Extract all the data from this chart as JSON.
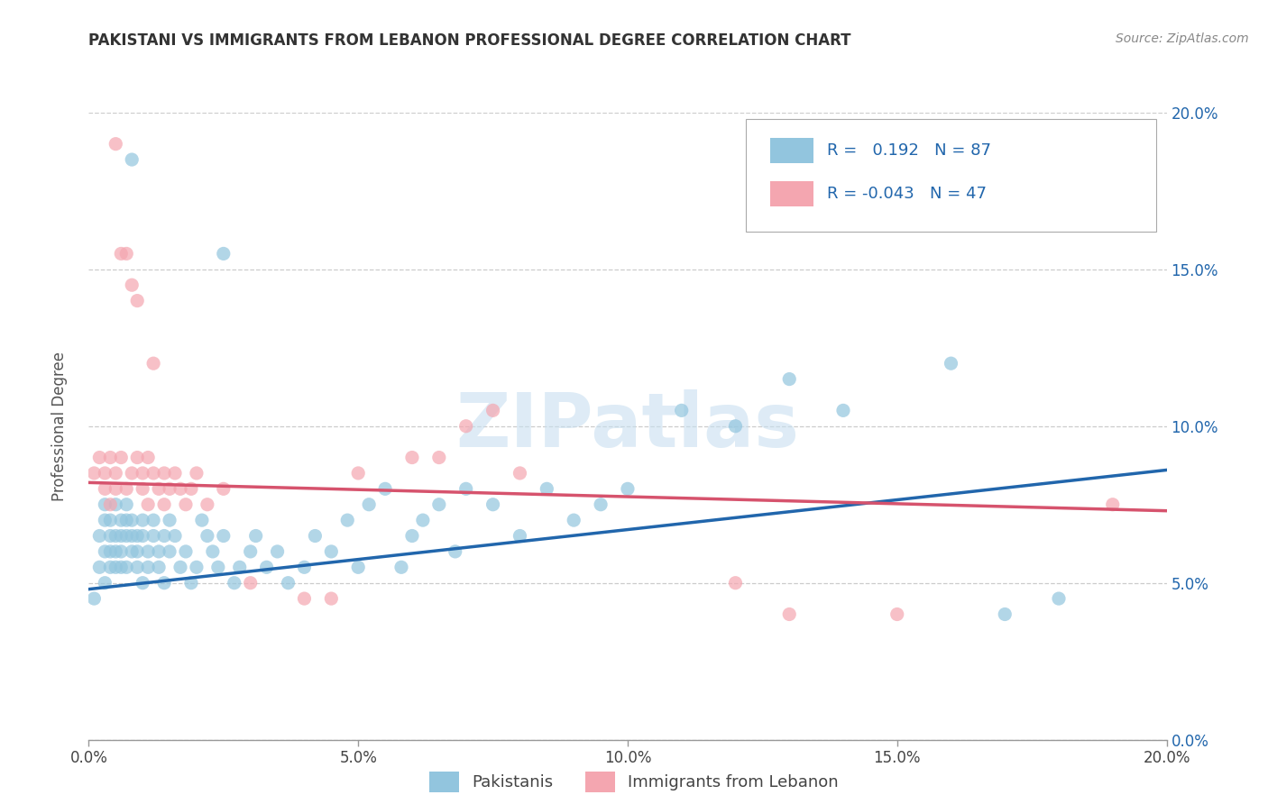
{
  "title": "PAKISTANI VS IMMIGRANTS FROM LEBANON PROFESSIONAL DEGREE CORRELATION CHART",
  "source": "Source: ZipAtlas.com",
  "ylabel": "Professional Degree",
  "xlim": [
    0.0,
    0.2
  ],
  "ylim": [
    0.0,
    0.2
  ],
  "pakistani_R": 0.192,
  "pakistani_N": 87,
  "lebanon_R": -0.043,
  "lebanon_N": 47,
  "pakistani_color": "#92c5de",
  "lebanon_color": "#f4a6b0",
  "pakistani_line_color": "#2166ac",
  "lebanon_line_color": "#d6536d",
  "watermark": "ZIPatlas",
  "pakistani_scatter": [
    [
      0.001,
      0.045
    ],
    [
      0.002,
      0.065
    ],
    [
      0.002,
      0.055
    ],
    [
      0.003,
      0.07
    ],
    [
      0.003,
      0.06
    ],
    [
      0.003,
      0.05
    ],
    [
      0.003,
      0.075
    ],
    [
      0.004,
      0.065
    ],
    [
      0.004,
      0.055
    ],
    [
      0.004,
      0.07
    ],
    [
      0.004,
      0.06
    ],
    [
      0.005,
      0.065
    ],
    [
      0.005,
      0.055
    ],
    [
      0.005,
      0.075
    ],
    [
      0.005,
      0.06
    ],
    [
      0.006,
      0.07
    ],
    [
      0.006,
      0.065
    ],
    [
      0.006,
      0.055
    ],
    [
      0.006,
      0.06
    ],
    [
      0.007,
      0.07
    ],
    [
      0.007,
      0.065
    ],
    [
      0.007,
      0.055
    ],
    [
      0.007,
      0.075
    ],
    [
      0.008,
      0.065
    ],
    [
      0.008,
      0.06
    ],
    [
      0.008,
      0.07
    ],
    [
      0.009,
      0.065
    ],
    [
      0.009,
      0.055
    ],
    [
      0.009,
      0.06
    ],
    [
      0.01,
      0.07
    ],
    [
      0.01,
      0.065
    ],
    [
      0.01,
      0.05
    ],
    [
      0.011,
      0.06
    ],
    [
      0.011,
      0.055
    ],
    [
      0.012,
      0.065
    ],
    [
      0.012,
      0.07
    ],
    [
      0.013,
      0.055
    ],
    [
      0.013,
      0.06
    ],
    [
      0.014,
      0.065
    ],
    [
      0.014,
      0.05
    ],
    [
      0.015,
      0.07
    ],
    [
      0.015,
      0.06
    ],
    [
      0.016,
      0.065
    ],
    [
      0.017,
      0.055
    ],
    [
      0.018,
      0.06
    ],
    [
      0.019,
      0.05
    ],
    [
      0.02,
      0.055
    ],
    [
      0.021,
      0.07
    ],
    [
      0.022,
      0.065
    ],
    [
      0.023,
      0.06
    ],
    [
      0.024,
      0.055
    ],
    [
      0.025,
      0.065
    ],
    [
      0.027,
      0.05
    ],
    [
      0.028,
      0.055
    ],
    [
      0.03,
      0.06
    ],
    [
      0.031,
      0.065
    ],
    [
      0.033,
      0.055
    ],
    [
      0.035,
      0.06
    ],
    [
      0.037,
      0.05
    ],
    [
      0.04,
      0.055
    ],
    [
      0.042,
      0.065
    ],
    [
      0.045,
      0.06
    ],
    [
      0.048,
      0.07
    ],
    [
      0.05,
      0.055
    ],
    [
      0.052,
      0.075
    ],
    [
      0.055,
      0.08
    ],
    [
      0.058,
      0.055
    ],
    [
      0.06,
      0.065
    ],
    [
      0.062,
      0.07
    ],
    [
      0.065,
      0.075
    ],
    [
      0.068,
      0.06
    ],
    [
      0.07,
      0.08
    ],
    [
      0.075,
      0.075
    ],
    [
      0.08,
      0.065
    ],
    [
      0.085,
      0.08
    ],
    [
      0.09,
      0.07
    ],
    [
      0.095,
      0.075
    ],
    [
      0.1,
      0.08
    ],
    [
      0.11,
      0.105
    ],
    [
      0.12,
      0.1
    ],
    [
      0.13,
      0.115
    ],
    [
      0.14,
      0.105
    ],
    [
      0.16,
      0.12
    ],
    [
      0.17,
      0.04
    ],
    [
      0.18,
      0.045
    ],
    [
      0.008,
      0.185
    ],
    [
      0.025,
      0.155
    ]
  ],
  "lebanon_scatter": [
    [
      0.001,
      0.085
    ],
    [
      0.002,
      0.09
    ],
    [
      0.003,
      0.085
    ],
    [
      0.003,
      0.08
    ],
    [
      0.004,
      0.09
    ],
    [
      0.004,
      0.075
    ],
    [
      0.005,
      0.085
    ],
    [
      0.005,
      0.08
    ],
    [
      0.005,
      0.19
    ],
    [
      0.006,
      0.155
    ],
    [
      0.006,
      0.09
    ],
    [
      0.007,
      0.155
    ],
    [
      0.007,
      0.08
    ],
    [
      0.008,
      0.145
    ],
    [
      0.008,
      0.085
    ],
    [
      0.009,
      0.14
    ],
    [
      0.009,
      0.09
    ],
    [
      0.01,
      0.08
    ],
    [
      0.01,
      0.085
    ],
    [
      0.011,
      0.075
    ],
    [
      0.011,
      0.09
    ],
    [
      0.012,
      0.085
    ],
    [
      0.012,
      0.12
    ],
    [
      0.013,
      0.08
    ],
    [
      0.014,
      0.085
    ],
    [
      0.014,
      0.075
    ],
    [
      0.015,
      0.08
    ],
    [
      0.016,
      0.085
    ],
    [
      0.017,
      0.08
    ],
    [
      0.018,
      0.075
    ],
    [
      0.019,
      0.08
    ],
    [
      0.02,
      0.085
    ],
    [
      0.022,
      0.075
    ],
    [
      0.025,
      0.08
    ],
    [
      0.03,
      0.05
    ],
    [
      0.04,
      0.045
    ],
    [
      0.045,
      0.045
    ],
    [
      0.05,
      0.085
    ],
    [
      0.06,
      0.09
    ],
    [
      0.065,
      0.09
    ],
    [
      0.07,
      0.1
    ],
    [
      0.075,
      0.105
    ],
    [
      0.08,
      0.085
    ],
    [
      0.12,
      0.05
    ],
    [
      0.13,
      0.04
    ],
    [
      0.15,
      0.04
    ],
    [
      0.19,
      0.075
    ]
  ],
  "pakistani_trend_x": [
    0.0,
    0.2
  ],
  "pakistani_trend_y": [
    0.048,
    0.086
  ],
  "lebanon_trend_x": [
    0.0,
    0.2
  ],
  "lebanon_trend_y": [
    0.082,
    0.073
  ],
  "ytick_labels": [
    "0.0%",
    "5.0%",
    "10.0%",
    "15.0%",
    "20.0%"
  ],
  "ytick_values": [
    0.0,
    0.05,
    0.1,
    0.15,
    0.2
  ],
  "xtick_labels": [
    "0.0%",
    "5.0%",
    "10.0%",
    "15.0%",
    "20.0%"
  ],
  "xtick_values": [
    0.0,
    0.05,
    0.1,
    0.15,
    0.2
  ]
}
